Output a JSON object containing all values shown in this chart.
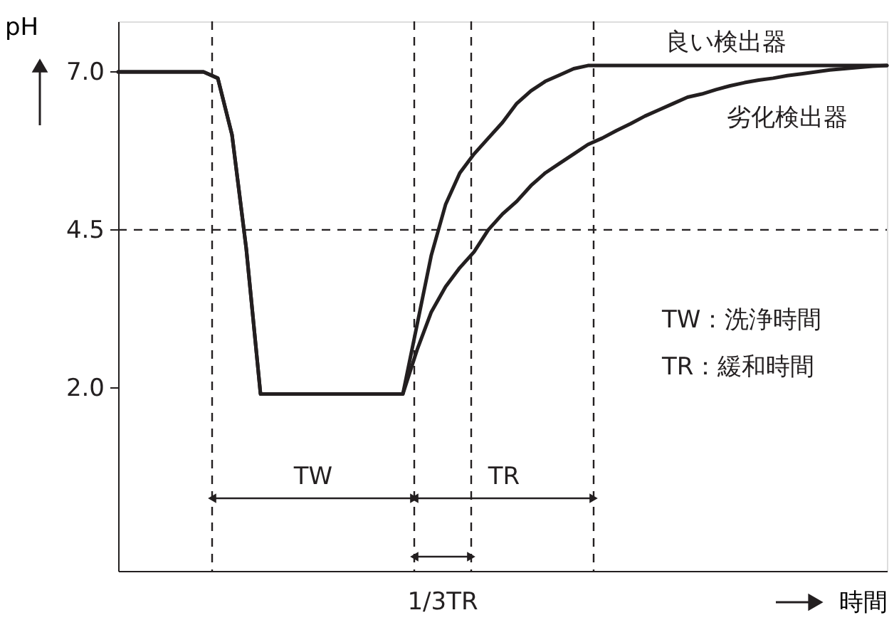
{
  "chart_data": {
    "type": "line",
    "ylabel": "pH",
    "xlabel": "時間",
    "categories": [
      null,
      null,
      null,
      null,
      null,
      null,
      null,
      null,
      null,
      null,
      null,
      null,
      null,
      null,
      null,
      null,
      null,
      null,
      null,
      null,
      null,
      null,
      null,
      null,
      null,
      null,
      null,
      null,
      null,
      null,
      null,
      null,
      null,
      null,
      null,
      null,
      null,
      null,
      null,
      null,
      null,
      null,
      null,
      null,
      null,
      null,
      null,
      null,
      null,
      null,
      null,
      null,
      null,
      null,
      null
    ],
    "ylim": [
      -0.9,
      7.8
    ],
    "yticks": [
      {
        "value": 7,
        "label": "7.0"
      },
      {
        "value": 4.5,
        "label": "4.5"
      },
      {
        "value": 2,
        "label": "2.0"
      }
    ],
    "tick_labels": "y",
    "grid": false,
    "marker": "none",
    "line_style": "solid",
    "series": [
      {
        "name": "良い検出器",
        "color": "#231f20",
        "values": [
          7.0,
          7.0,
          7.0,
          7.0,
          7.0,
          7.0,
          7.0,
          6.9,
          6.0,
          4.2,
          1.9,
          1.9,
          1.9,
          1.9,
          1.9,
          1.9,
          1.9,
          1.9,
          1.9,
          1.9,
          1.9,
          3.0,
          4.1,
          4.9,
          5.4,
          5.7,
          5.95,
          6.2,
          6.5,
          6.7,
          6.85,
          6.95,
          7.05,
          7.1,
          7.1,
          7.1,
          7.1,
          7.1,
          7.1,
          7.1,
          7.1,
          7.1,
          7.1,
          7.1,
          7.1,
          7.1,
          7.1,
          7.1,
          7.1,
          7.1,
          7.1,
          7.1,
          7.1,
          7.1,
          7.1
        ]
      },
      {
        "name": "劣化検出器",
        "color": "#231f20",
        "values": [
          7.0,
          7.0,
          7.0,
          7.0,
          7.0,
          7.0,
          7.0,
          6.9,
          6.0,
          4.2,
          1.9,
          1.9,
          1.9,
          1.9,
          1.9,
          1.9,
          1.9,
          1.9,
          1.9,
          1.9,
          1.9,
          2.6,
          3.2,
          3.6,
          3.9,
          4.15,
          4.5,
          4.75,
          4.95,
          5.2,
          5.4,
          5.55,
          5.7,
          5.85,
          5.95,
          6.07,
          6.18,
          6.3,
          6.4,
          6.5,
          6.6,
          6.65,
          6.72,
          6.78,
          6.83,
          6.87,
          6.9,
          6.94,
          6.97,
          7.0,
          7.03,
          7.05,
          7.07,
          7.09,
          7.1
        ]
      }
    ],
    "ref_lines": [
      {
        "axis": "y",
        "value": 4.5,
        "color": "#231f20",
        "line_style": "dashed"
      }
    ],
    "annotations": [
      "TW",
      "TR",
      "1/3TR",
      "TW：洗浄時間",
      "TR：緩和時間"
    ]
  }
}
